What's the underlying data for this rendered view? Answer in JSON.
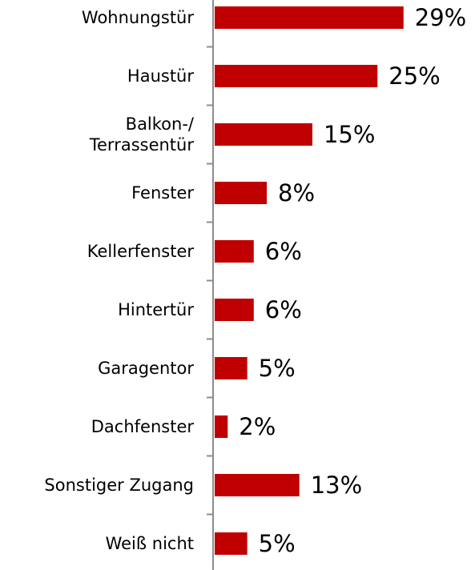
{
  "chart_data": {
    "type": "bar",
    "orientation": "horizontal",
    "categories": [
      "Wohnungstür",
      "Haustür",
      "Balkon-/\nTerrassentür",
      "Fenster",
      "Kellerfenster",
      "Hintertür",
      "Garagentor",
      "Dachfenster",
      "Sonstiger Zugang",
      "Weiß nicht"
    ],
    "values": [
      29,
      25,
      15,
      8,
      6,
      6,
      5,
      2,
      13,
      5
    ],
    "value_labels": [
      "29%",
      "25%",
      "15%",
      "8%",
      "6%",
      "6%",
      "5%",
      "2%",
      "13%",
      "5%"
    ],
    "color": "#c00000"
  }
}
